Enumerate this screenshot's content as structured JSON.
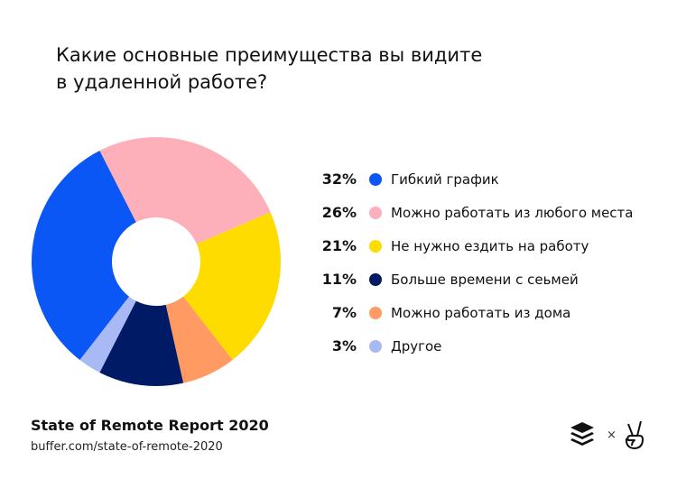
{
  "title_lines": [
    "Какие основные преимущества вы видите",
    "в удаленной работе?"
  ],
  "chart_data": {
    "type": "pie",
    "donut": true,
    "title": "Какие основные преимущества вы видите в удаленной работе?",
    "legend_position": "right",
    "slices": [
      {
        "label": "Гибкий график",
        "value": 32,
        "value_label": "32%",
        "color": "#0b57f5"
      },
      {
        "label": "Можно работать из любого места",
        "value": 26,
        "value_label": "26%",
        "color": "#fdb0ba"
      },
      {
        "label": "Не нужно ездить на работу",
        "value": 21,
        "value_label": "21%",
        "color": "#ffdc00"
      },
      {
        "label": "Больше времени с сеьмей",
        "value": 11,
        "value_label": "11%",
        "color": "#001a66"
      },
      {
        "label": "Можно работать из дома",
        "value": 7,
        "value_label": "7%",
        "color": "#ff9a63"
      },
      {
        "label": "Другое",
        "value": 3,
        "value_label": "3%",
        "color": "#a9b9f5"
      }
    ]
  },
  "footer": {
    "report": "State of Remote Report 2020",
    "url": "buffer.com/state-of-remote-2020",
    "times": "×"
  },
  "logos": [
    "buffer-logo",
    "angellist-logo"
  ]
}
